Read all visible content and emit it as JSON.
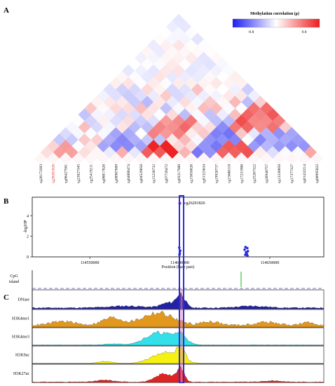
{
  "panels": {
    "a": "A",
    "b": "B",
    "c": "C"
  },
  "legend": {
    "title": "Methylation correlation (ρ)",
    "min_label": "-0.8",
    "max_label": "0.8"
  },
  "colors": {
    "negative": "#3b3bf0",
    "positive": "#ee2222",
    "highlight_bar": "#2a2ad8",
    "highlight_text": "#d42020"
  },
  "chart_data": [
    {
      "type": "heatmap",
      "title": "",
      "legend_title": "Methylation correlation (ρ)",
      "value_range": [
        -0.8,
        0.8
      ],
      "categories": [
        "cg26173203",
        "cg26201826",
        "cg06427561",
        "cg23027345",
        "cg25419211",
        "cg06017028",
        "cg08987089",
        "cg04006474",
        "cg04529658",
        "cg15236732",
        "cg07739472",
        "cg03317980",
        "cg15658026",
        "cg01323634",
        "cg19920737",
        "cg15688118",
        "cg17231906",
        "cg25267322",
        "cg20948757",
        "cg13330050",
        "cg17377327",
        "cg01432214",
        "cg00995022"
      ],
      "highlight_category": "cg26201826"
    },
    {
      "type": "scatter",
      "ylabel": "-log10P",
      "xlabel": "Position (base pair)",
      "x_ticks": [
        114550000,
        114600000,
        114650000
      ],
      "y_ticks": [
        0,
        2,
        4
      ],
      "xlim": [
        114518000,
        114680000
      ],
      "ylim": [
        0,
        5.8
      ],
      "highlight": {
        "label": "cg26201826",
        "x": 114600000,
        "y": 5.2
      },
      "series": [
        {
          "values": [
            [
              114599700,
              0.9
            ],
            [
              114600200,
              0.6
            ],
            [
              114600000,
              0.35
            ],
            [
              114599800,
              0.2
            ],
            [
              114636500,
              0.95
            ],
            [
              114637500,
              0.85
            ],
            [
              114636000,
              0.7
            ],
            [
              114637800,
              0.55
            ],
            [
              114636800,
              0.45
            ],
            [
              114637200,
              0.3
            ],
            [
              114636400,
              0.2
            ],
            [
              114637600,
              0.12
            ]
          ]
        }
      ]
    },
    {
      "type": "area",
      "tracks": [
        "CpG island",
        "DNase",
        "H3K4me1",
        "H3K4me3",
        "H3K9ac",
        "H3K27ac"
      ]
    }
  ]
}
